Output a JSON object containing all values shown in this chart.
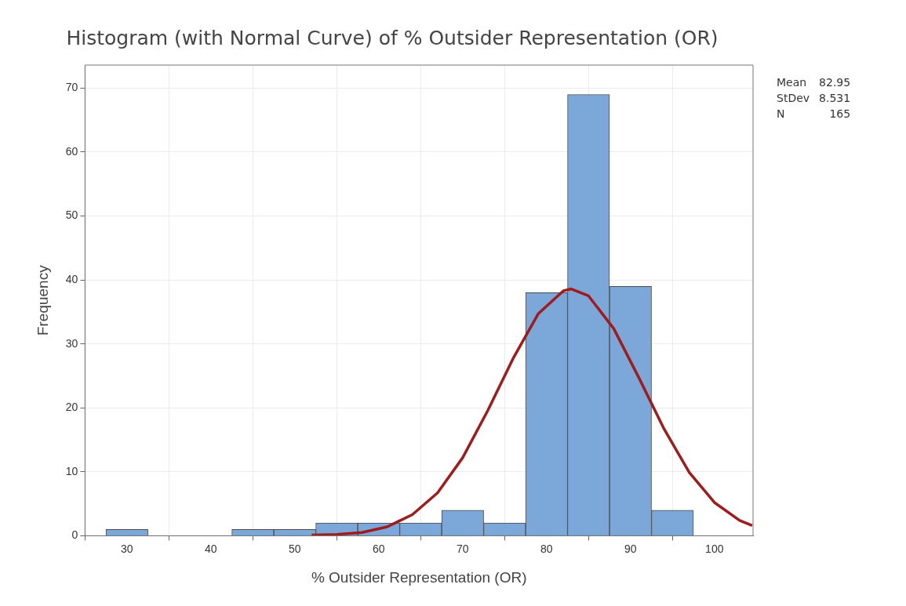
{
  "chart_data": {
    "type": "histogram",
    "title": "Histogram (with Normal Curve) of % Outsider Representation (OR)",
    "xlabel": "% Outsider Representation (OR)",
    "ylabel": "Frequency",
    "bins": [
      27.5,
      32.5,
      37.5,
      42.5,
      47.5,
      52.5,
      57.5,
      62.5,
      67.5,
      72.5,
      77.5,
      82.5,
      87.5,
      92.5,
      97.5
    ],
    "values": [
      1,
      0,
      0,
      1,
      1,
      2,
      2,
      2,
      4,
      2,
      38,
      69,
      39,
      4
    ],
    "color": "#7ba7d9",
    "series": [
      {
        "type": "line",
        "color": "#a01c1c",
        "x": [
          52,
          55,
          58,
          61,
          64,
          67,
          70,
          73,
          76,
          79,
          82,
          82.95,
          85,
          88,
          91,
          94,
          97,
          100,
          103,
          104.5
        ],
        "values": [
          0.1,
          0.2,
          0.5,
          1.4,
          3.3,
          6.7,
          12.2,
          19.6,
          27.7,
          34.7,
          38.3,
          38.6,
          37.5,
          32.4,
          24.7,
          16.7,
          9.9,
          5.2,
          2.4,
          1.6
        ]
      }
    ],
    "xlim": [
      25,
      104.6
    ],
    "xticks": [
      30,
      40,
      50,
      60,
      70,
      80,
      90,
      100
    ],
    "ylim": [
      0,
      73.6
    ],
    "yticks": [
      0,
      10,
      20,
      30,
      40,
      50,
      60,
      70
    ],
    "grid": true,
    "legend": false,
    "marker": "none",
    "line_style": "solid",
    "annotations": [
      "Mean 82.95",
      "StDev 8.531",
      "N 165"
    ]
  }
}
